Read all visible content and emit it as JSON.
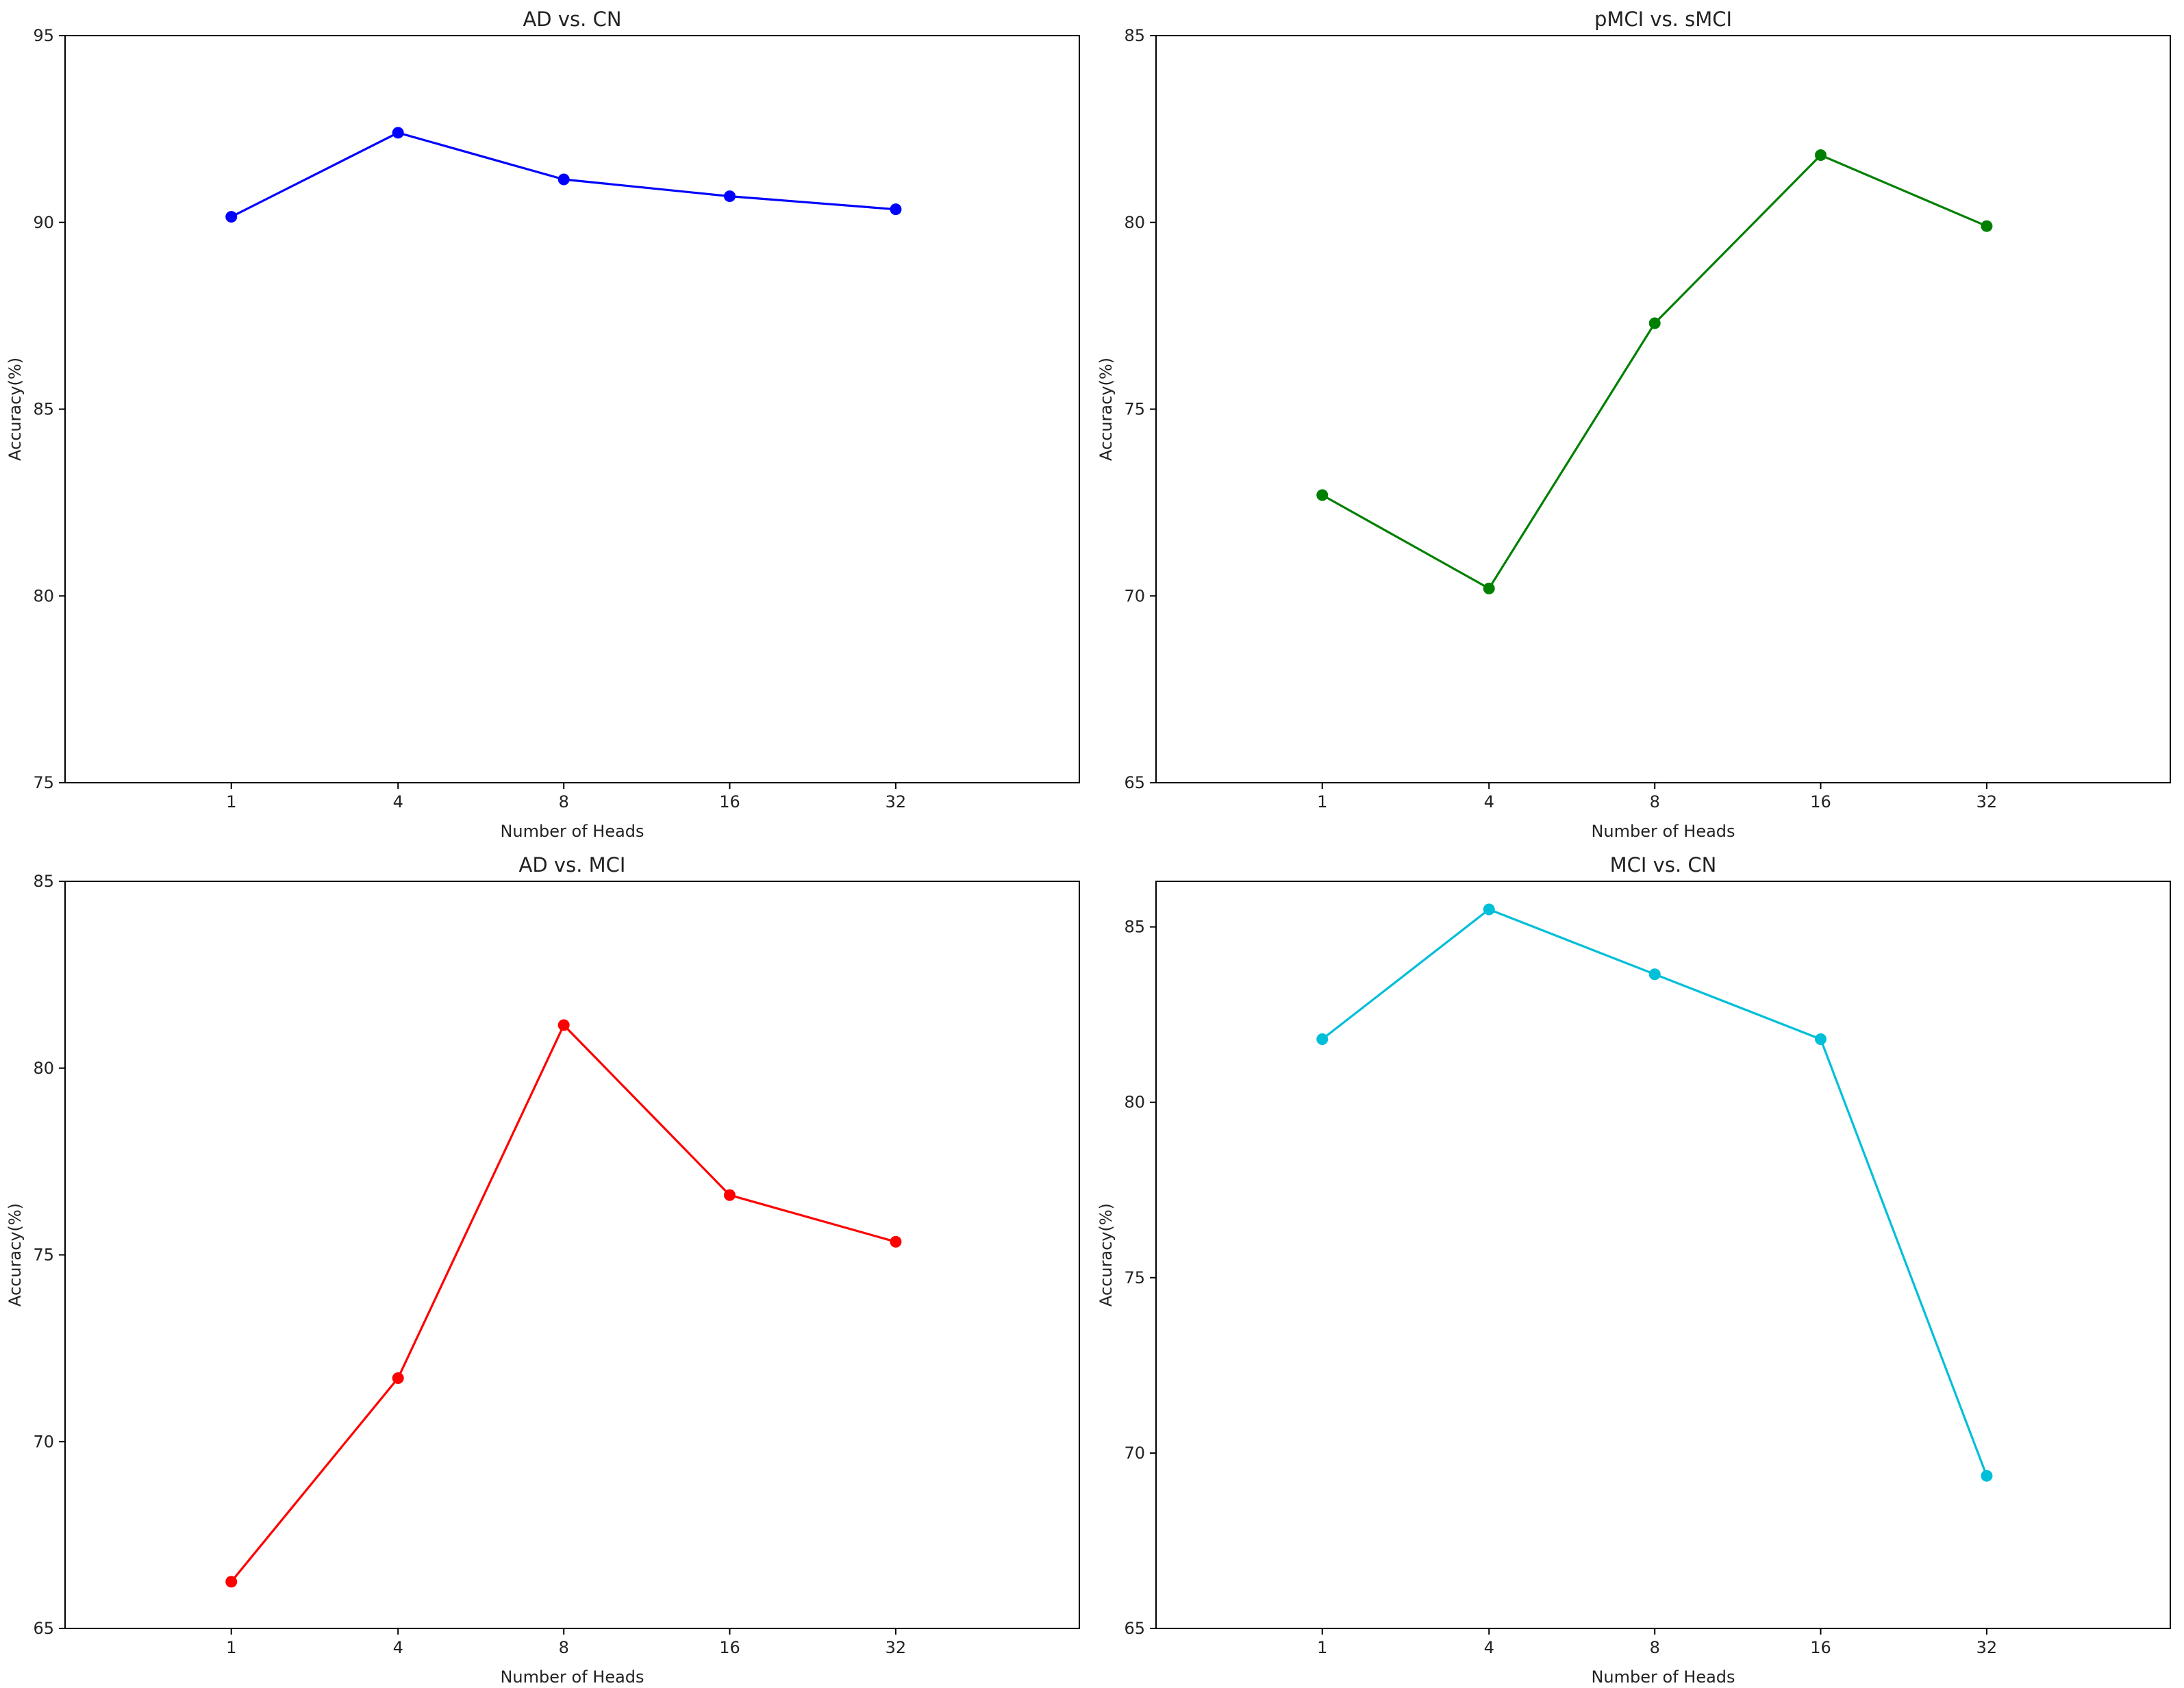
{
  "chart_data": [
    {
      "type": "line",
      "title": "AD vs. CN",
      "xlabel": "Number of Heads",
      "ylabel": "Accuracy(%)",
      "categories": [
        "1",
        "4",
        "8",
        "16",
        "32"
      ],
      "ylim": [
        75,
        95
      ],
      "yticks": [
        75,
        80,
        85,
        90,
        95
      ],
      "grid": false,
      "series": [
        {
          "values": [
            90.15,
            92.4,
            91.15,
            90.7,
            90.35
          ],
          "color": "#0000ff"
        }
      ]
    },
    {
      "type": "line",
      "title": "pMCI vs. sMCI",
      "xlabel": "Number of Heads",
      "ylabel": "Accuracy(%)",
      "categories": [
        "1",
        "4",
        "8",
        "16",
        "32"
      ],
      "ylim": [
        65,
        85
      ],
      "yticks": [
        65,
        70,
        75,
        80,
        85
      ],
      "grid": false,
      "series": [
        {
          "values": [
            72.7,
            70.2,
            77.3,
            81.8,
            79.9
          ],
          "color": "#008000"
        }
      ]
    },
    {
      "type": "line",
      "title": "AD vs. MCI",
      "xlabel": "Number of Heads",
      "ylabel": "Accuracy(%)",
      "categories": [
        "1",
        "4",
        "8",
        "16",
        "32"
      ],
      "ylim": [
        65,
        85
      ],
      "yticks": [
        65,
        70,
        75,
        80,
        85
      ],
      "grid": false,
      "series": [
        {
          "values": [
            66.25,
            71.7,
            81.15,
            76.6,
            75.35
          ],
          "color": "#ff0000"
        }
      ]
    },
    {
      "type": "line",
      "title": "MCI vs. CN",
      "xlabel": "Number of Heads",
      "ylabel": "Accuracy(%)",
      "categories": [
        "1",
        "4",
        "8",
        "16",
        "32"
      ],
      "ylim": [
        65,
        86.3
      ],
      "yticks": [
        65,
        70,
        75,
        80,
        85
      ],
      "grid": false,
      "series": [
        {
          "values": [
            81.8,
            85.5,
            83.65,
            81.8,
            69.35
          ],
          "color": "#00bfd8"
        }
      ]
    }
  ]
}
